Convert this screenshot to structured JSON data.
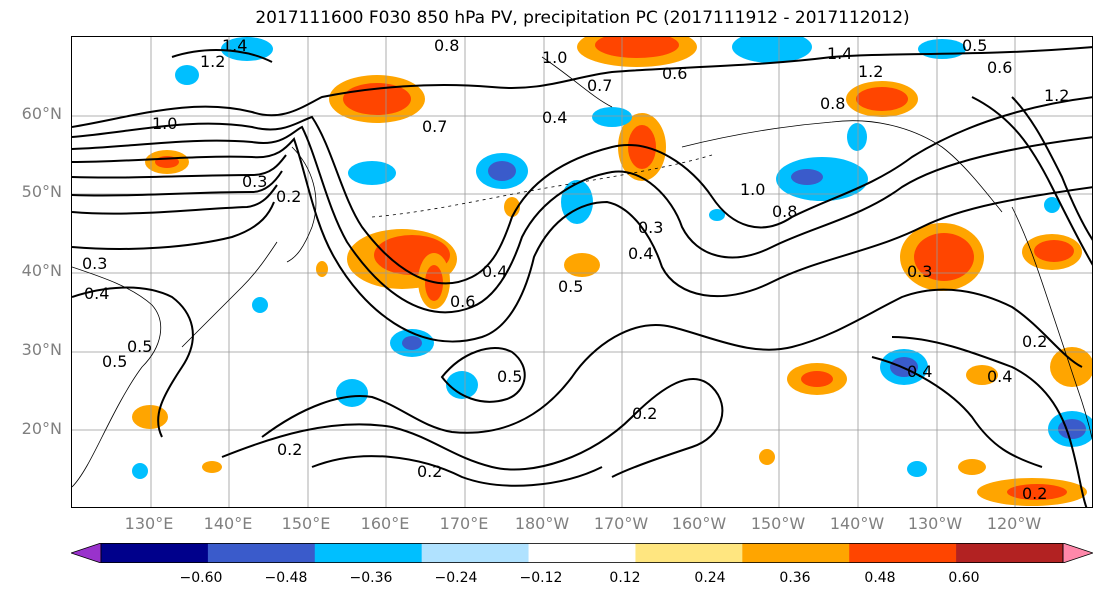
{
  "title": "2017111600 F030 850 hPa PV, precipitation PC (2017111912 - 2017112012)",
  "lat_labels": [
    "60°N",
    "50°N",
    "40°N",
    "30°N",
    "20°N"
  ],
  "lon_labels": [
    "130°E",
    "140°E",
    "150°E",
    "160°E",
    "170°E",
    "180°W",
    "170°W",
    "160°W",
    "150°W",
    "140°W",
    "130°W",
    "120°W"
  ],
  "colorbar": {
    "ticks": [
      "−0.60",
      "−0.48",
      "−0.36",
      "−0.24",
      "−0.12",
      "0.12",
      "0.24",
      "0.36",
      "0.48",
      "0.60"
    ],
    "colors": [
      "#9932CC",
      "#00008B",
      "#3A5BCB",
      "#00BFFF",
      "#B0E2FF",
      "#FFFFFF",
      "#FFE680",
      "#FFA500",
      "#FF4500",
      "#B22222",
      "#FF88AA"
    ]
  },
  "contour_labels": [
    "1.2",
    "1.4",
    "0.8",
    "1.0",
    "0.7",
    "0.6",
    "1.4",
    "1.2",
    "0.5",
    "0.6",
    "1.2",
    "1.0",
    "0.8",
    "0.4",
    "0.3",
    "0.2",
    "0.7",
    "0.3",
    "0.4",
    "0.4",
    "0.6",
    "0.5",
    "0.3",
    "1.0",
    "0.8",
    "0.5",
    "0.4",
    "0.3",
    "0.5",
    "0.5",
    "0.2",
    "0.2",
    "0.2",
    "0.2",
    "0.4",
    "0.4",
    "0.2"
  ]
}
